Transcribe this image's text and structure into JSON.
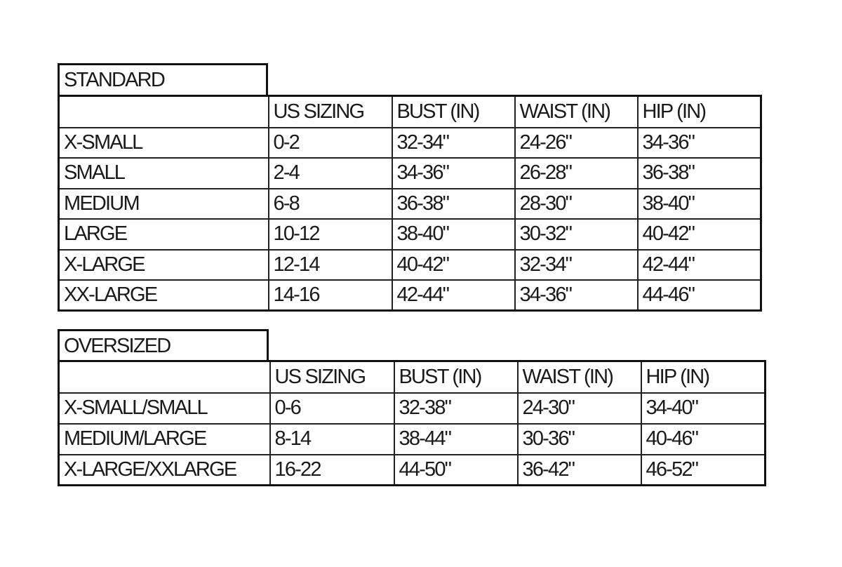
{
  "tables": [
    {
      "title": "STANDARD",
      "headers": [
        "",
        "US SIZING",
        "BUST (IN)",
        "WAIST (IN)",
        "HIP (IN)"
      ],
      "rows": [
        [
          "X-SMALL",
          "0-2",
          "32-34\"",
          "24-26\"",
          "34-36\""
        ],
        [
          "SMALL",
          "2-4",
          "34-36\"",
          "26-28\"",
          "36-38\""
        ],
        [
          "MEDIUM",
          "6-8",
          "36-38\"",
          "28-30\"",
          "38-40\""
        ],
        [
          "LARGE",
          "10-12",
          "38-40\"",
          "30-32\"",
          "40-42\""
        ],
        [
          "X-LARGE",
          "12-14",
          "40-42\"",
          "32-34\"",
          "42-44\""
        ],
        [
          "XX-LARGE",
          "14-16",
          "42-44\"",
          "34-36\"",
          "44-46\""
        ]
      ]
    },
    {
      "title": "OVERSIZED",
      "headers": [
        "",
        "US SIZING",
        "BUST (IN)",
        "WAIST (IN)",
        "HIP (IN)"
      ],
      "rows": [
        [
          "X-SMALL/SMALL",
          "0-6",
          "32-38\"",
          "24-30\"",
          "34-40\""
        ],
        [
          "MEDIUM/LARGE",
          "8-14",
          "38-44\"",
          "30-36\"",
          "40-46\""
        ],
        [
          "X-LARGE/XXLARGE",
          "16-22",
          "44-50\"",
          "36-42\"",
          "46-52\""
        ]
      ]
    }
  ]
}
